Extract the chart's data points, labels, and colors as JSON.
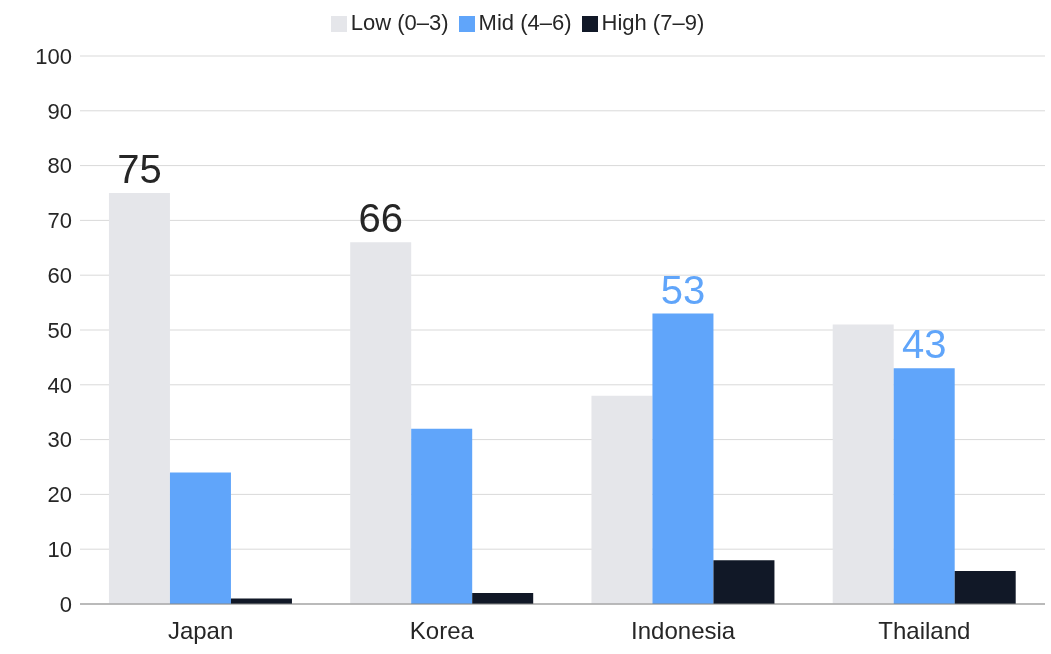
{
  "chart_data": {
    "type": "bar",
    "categories": [
      "Japan",
      "Korea",
      "Indonesia",
      "Thailand"
    ],
    "series": [
      {
        "name": "Low (0–3)",
        "color": "#e5e6ea",
        "values": [
          75,
          66,
          38,
          51
        ],
        "value_labels": [
          "75",
          "66",
          null,
          null
        ]
      },
      {
        "name": "Mid (4–6)",
        "color": "#60a5fa",
        "values": [
          24,
          32,
          53,
          43
        ],
        "value_labels": [
          null,
          null,
          "53",
          "43"
        ]
      },
      {
        "name": "High (7–9)",
        "color": "#111827",
        "values": [
          1,
          2,
          8,
          6
        ],
        "value_labels": [
          null,
          null,
          null,
          null
        ]
      }
    ],
    "ylim": [
      0,
      100
    ],
    "yticks": [
      0,
      10,
      20,
      30,
      40,
      50,
      60,
      70,
      80,
      90,
      100
    ],
    "grid": "y",
    "legend": "top"
  }
}
